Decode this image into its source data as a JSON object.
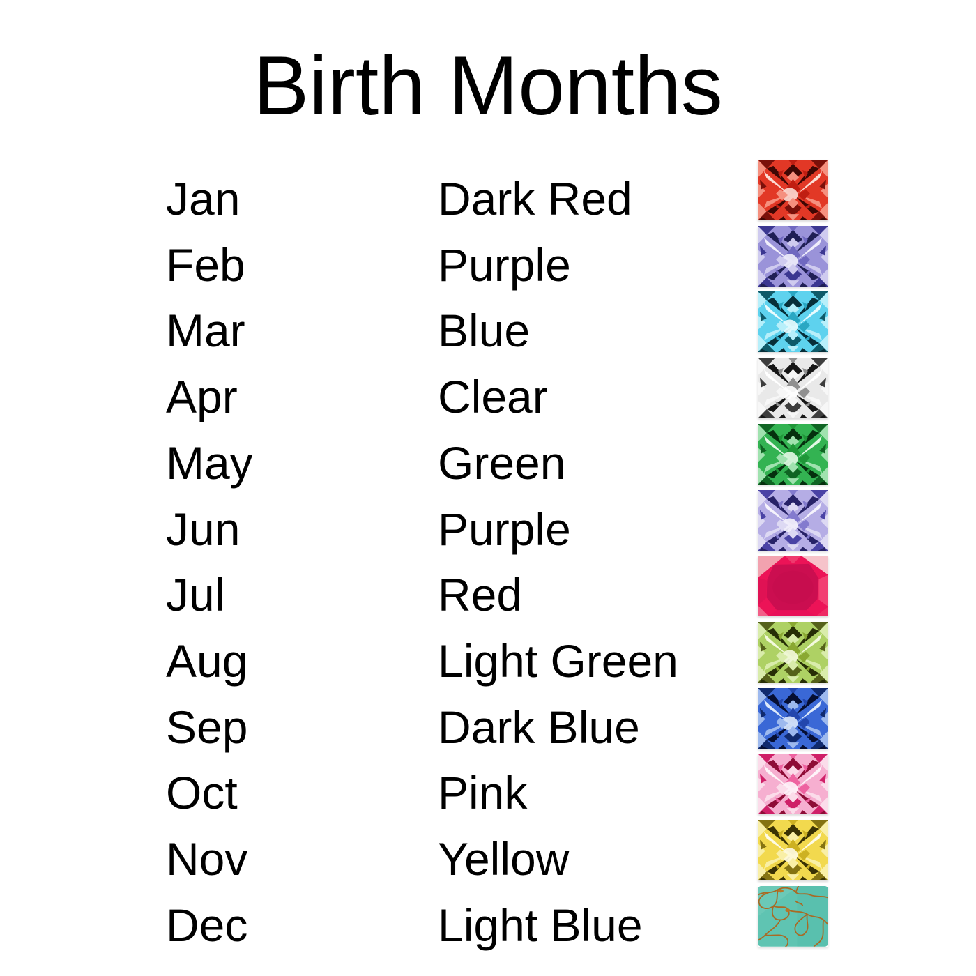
{
  "title": "Birth Months",
  "rows": [
    {
      "month": "Jan",
      "color_name": "Dark Red",
      "gem": {
        "type": "facet",
        "label": "dark-red-gemstone",
        "palette": [
          "#3f0704",
          "#7a100a",
          "#c01e12",
          "#e23826",
          "#f5907f",
          "#fcdcd4"
        ]
      }
    },
    {
      "month": "Feb",
      "color_name": "Purple",
      "gem": {
        "type": "facet",
        "label": "purple-gemstone",
        "palette": [
          "#1f1f55",
          "#3b3791",
          "#6f68c0",
          "#9a93d9",
          "#cfcbef",
          "#f0eefb"
        ]
      }
    },
    {
      "month": "Mar",
      "color_name": "Blue",
      "gem": {
        "type": "facet",
        "label": "blue-gemstone",
        "palette": [
          "#072e39",
          "#0f5a69",
          "#2aa7c3",
          "#5ed2ee",
          "#b7effa",
          "#eafcfe"
        ]
      }
    },
    {
      "month": "Apr",
      "color_name": "Clear",
      "gem": {
        "type": "facet",
        "label": "clear-gemstone",
        "palette": [
          "#161616",
          "#3d3d3d",
          "#909090",
          "#e9e9e9",
          "#f7f7f7",
          "#ffffff"
        ]
      }
    },
    {
      "month": "May",
      "color_name": "Green",
      "gem": {
        "type": "facet",
        "label": "green-gemstone",
        "palette": [
          "#05300e",
          "#0f6423",
          "#1f9638",
          "#33b352",
          "#a0e2af",
          "#e3f8e6"
        ]
      }
    },
    {
      "month": "Jun",
      "color_name": "Purple",
      "gem": {
        "type": "facet",
        "label": "light-purple-gemstone",
        "palette": [
          "#272267",
          "#4a43a5",
          "#837bce",
          "#b5ade5",
          "#ddd9f3",
          "#f5f3fc"
        ]
      }
    },
    {
      "month": "Jul",
      "color_name": "Red",
      "gem": {
        "type": "ruby",
        "label": "red-ruby-gemstone",
        "palette": {
          "base": "#ec1357",
          "table": "#cb0e50",
          "tableShade": "#c40c4c",
          "topFacet": "#ef3a6e",
          "cornerTL": "#f2a2af",
          "cornerTR": "#f6c3ca",
          "cornerBL": "#f25f88",
          "cornerBR": "#ee2a64",
          "sideL": "#e01254",
          "sideR": "#f23d71",
          "bottom": "#e81058"
        }
      }
    },
    {
      "month": "Aug",
      "color_name": "Light Green",
      "gem": {
        "type": "facet",
        "label": "light-green-gemstone",
        "palette": [
          "#272e06",
          "#55611a",
          "#8aa832",
          "#aed164",
          "#d9ecab",
          "#f4fade"
        ]
      }
    },
    {
      "month": "Sep",
      "color_name": "Dark Blue",
      "gem": {
        "type": "facet",
        "label": "dark-blue-gemstone",
        "palette": [
          "#060f33",
          "#102a6e",
          "#2246ad",
          "#3a68d6",
          "#9db9ee",
          "#dde9fb"
        ]
      }
    },
    {
      "month": "Oct",
      "color_name": "Pink",
      "gem": {
        "type": "facet",
        "label": "pink-gemstone",
        "palette": [
          "#8e0c36",
          "#cf2068",
          "#ee62a0",
          "#f6afd0",
          "#fbdcea",
          "#fef5f9"
        ]
      }
    },
    {
      "month": "Nov",
      "color_name": "Yellow",
      "gem": {
        "type": "facet",
        "label": "yellow-gemstone",
        "palette": [
          "#3a3204",
          "#857312",
          "#cdb122",
          "#f2d94e",
          "#f9efa6",
          "#fefbe4"
        ]
      }
    },
    {
      "month": "Dec",
      "color_name": "Light Blue",
      "gem": {
        "type": "turquoise",
        "label": "light-blue-turquoise-gemstone",
        "palette": {
          "base": "#5fc4b2",
          "shade": "#3fae9c",
          "lightOverlay": "#8fd8c9",
          "vein": "#a96a24",
          "veinBlob": "#b5772a"
        }
      }
    }
  ]
}
